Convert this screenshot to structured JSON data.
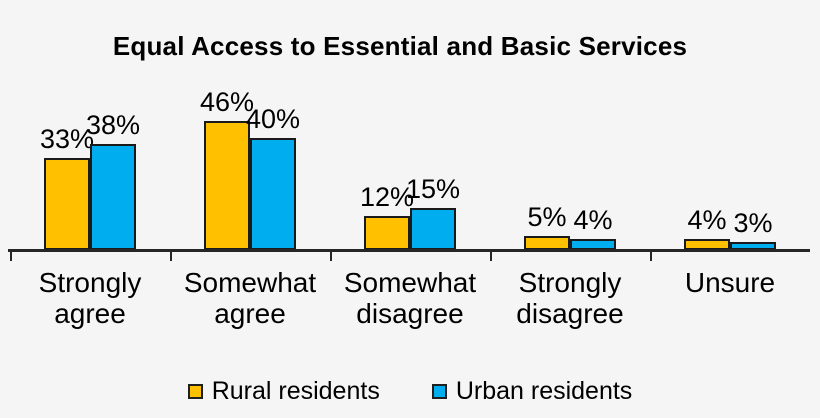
{
  "page_background": "#F5F5F5",
  "axis_color": "#262626",
  "bar_border_color": "#1a1a1a",
  "chart_data": {
    "type": "bar",
    "title": "Equal Access to Essential and Basic Services",
    "categories": [
      "Strongly\nagree",
      "Somewhat\nagree",
      "Somewhat\ndisagree",
      "Strongly\ndisagree",
      "Unsure"
    ],
    "series": [
      {
        "name": "Rural residents",
        "color": "#FFC000",
        "values": [
          33,
          46,
          12,
          5,
          4
        ]
      },
      {
        "name": "Urban residents",
        "color": "#00AEEF",
        "values": [
          38,
          40,
          15,
          4,
          3
        ]
      }
    ],
    "value_suffix": "%",
    "data_labels": true,
    "xlabel": "",
    "ylabel": "",
    "ylim": [
      0,
      50
    ],
    "grid": false,
    "y_axis_visible": false,
    "legend_position": "bottom"
  }
}
